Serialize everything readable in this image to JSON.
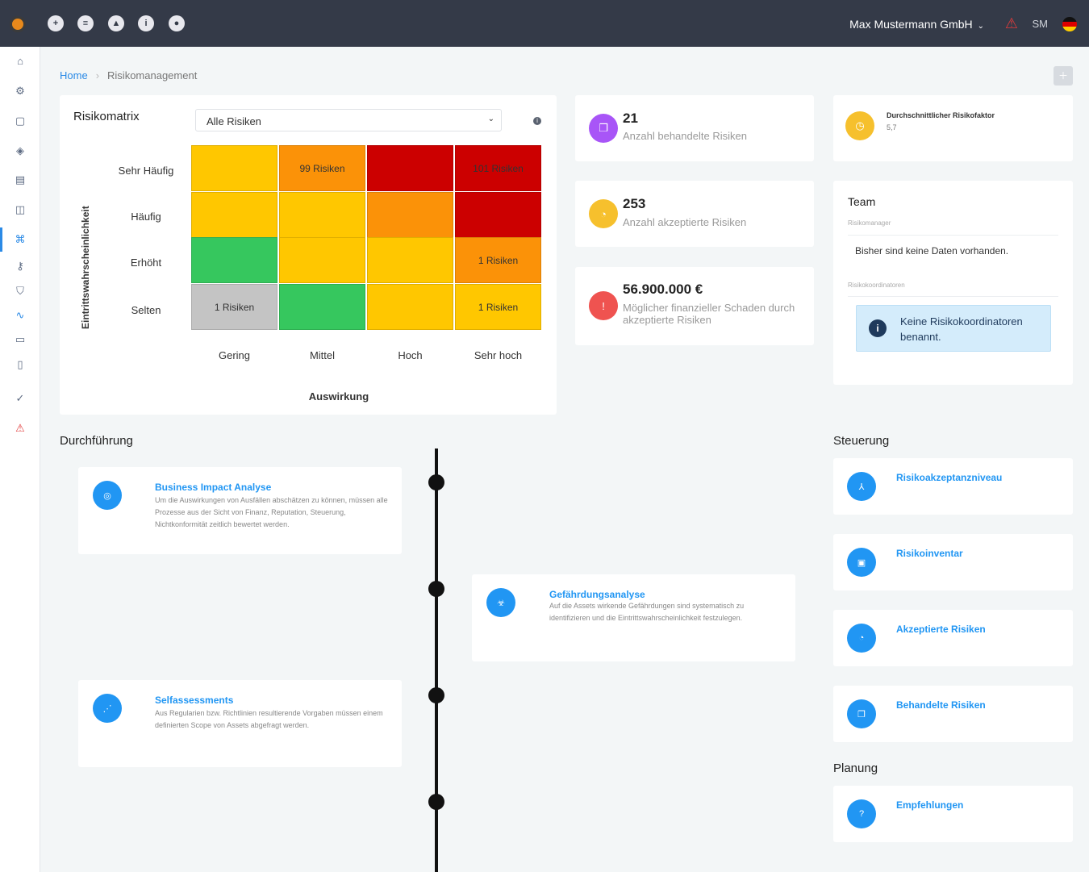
{
  "topbar": {
    "icons": [
      "logo-icon",
      "plus-circle-icon",
      "message-icon",
      "bell-icon",
      "info-icon",
      "user-circle-icon"
    ],
    "company": "Max Mustermann GmbH",
    "user_initials": "SM",
    "language_flag": "de",
    "warning_color": "#e23b3b"
  },
  "sidebar": {
    "items": [
      "home-icon",
      "settings-icon",
      "lock-icon",
      "box-icon",
      "document-icon",
      "book-icon",
      "command-icon",
      "key-icon",
      "shield-icon",
      "activity-icon",
      "truck-icon",
      "clipboard-icon",
      "check-circle-icon",
      "warning-icon"
    ],
    "active_index": 6
  },
  "breadcrumb": {
    "home": "Home",
    "current": "Risikomanagement"
  },
  "matrix": {
    "title": "Risikomatrix",
    "filter_value": "Alle Risiken",
    "y_axis_label": "Eintrittswahrscheinlichkeit",
    "x_axis_label": "Auswirkung",
    "rows": [
      "Sehr Häufig",
      "Häufig",
      "Erhöht",
      "Selten"
    ],
    "columns": [
      "Gering",
      "Mittel",
      "Hoch",
      "Sehr hoch"
    ],
    "cells": [
      [
        {
          "color": "#ffc700",
          "text": ""
        },
        {
          "color": "#fb9208",
          "text": "99 Risiken"
        },
        {
          "color": "#cc0000",
          "text": ""
        },
        {
          "color": "#cc0000",
          "text": "101 Risiken"
        }
      ],
      [
        {
          "color": "#ffc700",
          "text": ""
        },
        {
          "color": "#ffc700",
          "text": ""
        },
        {
          "color": "#fb9208",
          "text": ""
        },
        {
          "color": "#cc0000",
          "text": ""
        }
      ],
      [
        {
          "color": "#36c75e",
          "text": ""
        },
        {
          "color": "#ffc700",
          "text": ""
        },
        {
          "color": "#ffc700",
          "text": ""
        },
        {
          "color": "#fb9208",
          "text": "1 Risiken"
        }
      ],
      [
        {
          "color": "#c4c4c4",
          "text": "1 Risiken"
        },
        {
          "color": "#36c75e",
          "text": ""
        },
        {
          "color": "#ffc700",
          "text": ""
        },
        {
          "color": "#ffc700",
          "text": "1 Risiken"
        }
      ]
    ]
  },
  "stats": [
    {
      "value": "21",
      "label": "Anzahl behandelte Risiken",
      "icon": "copy-icon",
      "color": "#a855f7"
    },
    {
      "value": "253",
      "label": "Anzahl akzeptierte Risiken",
      "icon": "pie-chart-icon",
      "color": "#f6c02d"
    },
    {
      "value": "56.900.000 €",
      "label": "Möglicher finanzieller Schaden durch akzeptierte Risiken",
      "icon": "alert-circle-icon",
      "color": "#ef5350"
    }
  ],
  "avg_factor": {
    "title": "Durchschnittlicher Risikofaktor",
    "value": "5,7",
    "icon": "gauge-icon",
    "color": "#f6c02d"
  },
  "team": {
    "title": "Team",
    "manager_label": "Risikomanager",
    "no_data": "Bisher sind keine Daten vorhanden.",
    "coordinators_label": "Risikokoordinatoren",
    "alert_text": "Keine Risikokoordinatoren benannt."
  },
  "durchfuehrung": {
    "title": "Durchführung",
    "items": [
      {
        "title": "Business Impact Analyse",
        "text": "Um die Auswirkungen von Ausfällen abschätzen zu können, müssen alle Prozesse aus der Sicht von Finanz, Reputation, Steuerung, Nichtkonformität zeitlich bewertet werden.",
        "icon": "target-icon"
      },
      {
        "title": "Gefährdungsanalyse",
        "text": "Auf die Assets wirkende Gefährdungen sind systematisch zu identifizieren und die Eintrittswahrscheinlichkeit festzulegen.",
        "icon": "biohazard-icon"
      },
      {
        "title": "Selfassessments",
        "text": "Aus Regularien bzw. Richtlinien resultierende Vorgaben müssen einem definierten Scope von Assets abgefragt werden.",
        "icon": "share-icon"
      }
    ]
  },
  "steuerung": {
    "title": "Steuerung",
    "items": [
      {
        "label": "Risikoakzeptanzniveau",
        "icon": "compass-icon"
      },
      {
        "label": "Risikoinventar",
        "icon": "folder-icon"
      },
      {
        "label": "Akzeptierte Risiken",
        "icon": "pie-chart-icon"
      },
      {
        "label": "Behandelte Risiken",
        "icon": "copy-icon"
      }
    ]
  },
  "planung": {
    "title": "Planung",
    "items": [
      {
        "label": "Empfehlungen",
        "icon": "help-circle-icon"
      }
    ]
  }
}
